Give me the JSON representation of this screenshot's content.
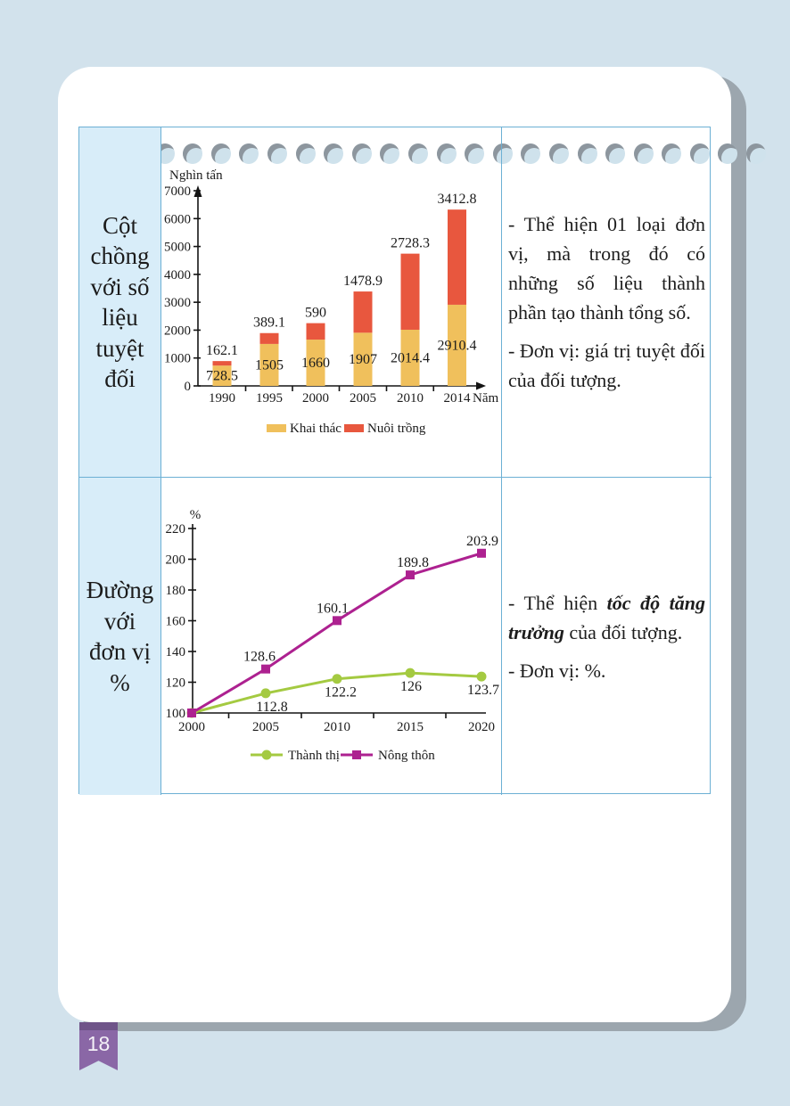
{
  "page": {
    "number": "18"
  },
  "colors": {
    "background": "#d2e2ec",
    "page": "#ffffff",
    "table_border": "#6cb0d4",
    "label_cell_bg": "#d8edf9",
    "bookmark": "#8a67a6"
  },
  "table": {
    "rows": [
      {
        "label": "Cột chồng với số liệu tuyệt đối",
        "label_lines": [
          "Cột",
          "chồng",
          "với số",
          "liệu",
          "tuyệt",
          "đối"
        ],
        "description": [
          {
            "segments": [
              {
                "t": "- Thể hiện 01 loại đơn vị, mà trong đó có những số liệu thành phần tạo thành tổng số."
              }
            ]
          },
          {
            "segments": [
              {
                "t": "- Đơn vị: giá trị tuyệt đối của đối tượng."
              }
            ]
          }
        ]
      },
      {
        "label": "Đường với đơn vị %",
        "label_lines": [
          "Đường",
          "với",
          "đơn vị",
          "%"
        ],
        "description": [
          {
            "segments": [
              {
                "t": "- Thể hiện "
              },
              {
                "t": "tốc độ tăng trưởng",
                "em": true
              },
              {
                "t": " của đối tượng."
              }
            ]
          },
          {
            "segments": [
              {
                "t": "- Đơn vị: %."
              }
            ]
          }
        ]
      }
    ]
  },
  "chart_data": [
    {
      "type": "bar",
      "stacked": true,
      "unit_label": "Nghìn tấn",
      "xlabel": "Năm",
      "categories": [
        "1990",
        "1995",
        "2000",
        "2005",
        "2010",
        "2014"
      ],
      "series": [
        {
          "name": "Khai thác",
          "color": "#f0c05c",
          "values": [
            728.5,
            1505,
            1660,
            1907,
            2014.4,
            2910.4
          ]
        },
        {
          "name": "Nuôi trồng",
          "color": "#e8573e",
          "values": [
            162.1,
            389.1,
            590,
            1478.9,
            2728.3,
            3412.8
          ]
        }
      ],
      "ylim": [
        0,
        7000
      ],
      "ytick_step": 1000,
      "grid": false,
      "legend_position": "bottom"
    },
    {
      "type": "line",
      "unit_label": "%",
      "x": [
        "2000",
        "2005",
        "2010",
        "2015",
        "2020"
      ],
      "series": [
        {
          "name": "Thành thị",
          "color": "#a4ca41",
          "marker": "circle",
          "values": [
            100,
            112.8,
            122.2,
            126,
            123.7
          ]
        },
        {
          "name": "Nông thôn",
          "color": "#ad2190",
          "marker": "square",
          "values": [
            100,
            128.6,
            160.1,
            189.8,
            203.9
          ]
        }
      ],
      "ylim": [
        100,
        220
      ],
      "ytick_step": 20,
      "grid": false,
      "legend_position": "bottom"
    }
  ]
}
